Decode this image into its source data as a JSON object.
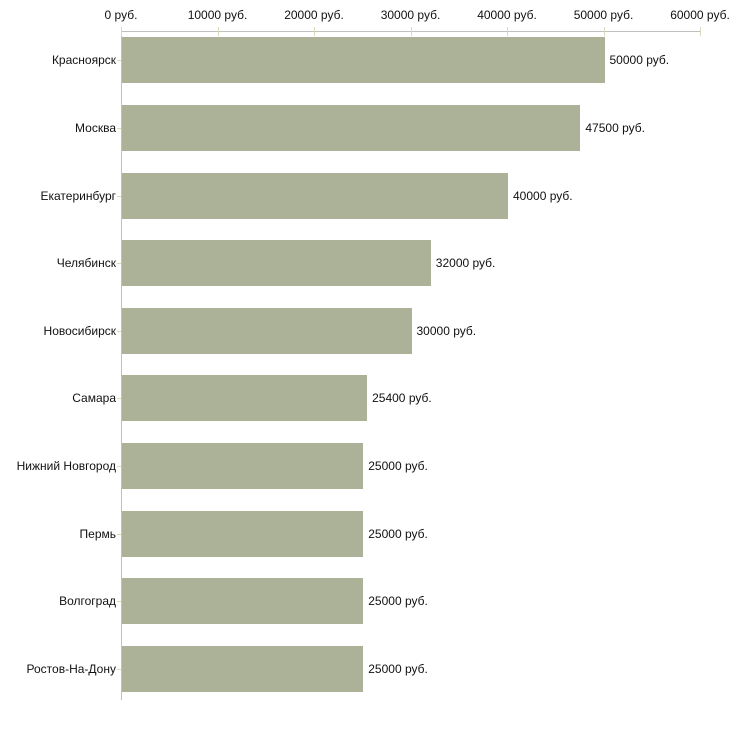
{
  "chart_data": {
    "type": "bar",
    "orientation": "horizontal",
    "title": "",
    "xlabel": "",
    "ylabel": "",
    "categories": [
      "Красноярск",
      "Москва",
      "Екатеринбург",
      "Челябинск",
      "Новосибирск",
      "Самара",
      "Нижний Новгород",
      "Пермь",
      "Волгоград",
      "Ростов-На-Дону"
    ],
    "values": [
      50000,
      47500,
      40000,
      32000,
      30000,
      25400,
      25000,
      25000,
      25000,
      25000
    ],
    "value_labels": [
      "50000 руб.",
      "47500 руб.",
      "40000 руб.",
      "32000 руб.",
      "30000 руб.",
      "25400 руб.",
      "25000 руб.",
      "25000 руб.",
      "25000 руб.",
      "25000 руб."
    ],
    "unit": "руб.",
    "x_ticks": [
      0,
      10000,
      20000,
      30000,
      40000,
      50000,
      60000
    ],
    "x_tick_labels": [
      "0 руб.",
      "10000 руб.",
      "20000 руб.",
      "30000 руб.",
      "40000 руб.",
      "50000 руб.",
      "60000 руб."
    ],
    "xlim": [
      0,
      60000
    ],
    "grid": false,
    "legend": false,
    "axis_position": "top",
    "colors": {
      "bar": "#acb298",
      "axis_line": "#c0c0c0",
      "tick_mark": "#d8dcbc",
      "text": "#111111",
      "background": "#ffffff"
    }
  }
}
